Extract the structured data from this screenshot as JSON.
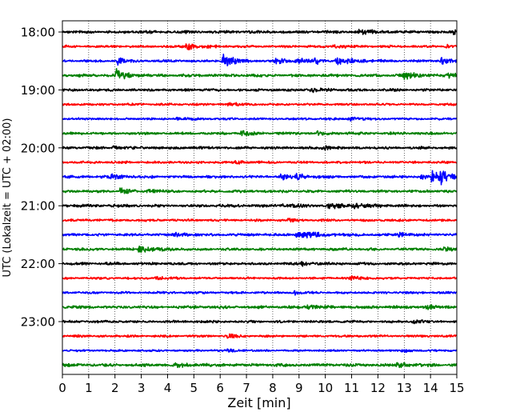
{
  "chart_data": {
    "type": "line",
    "subtype": "helicorder",
    "xlabel": "Zeit  [min]",
    "ylabel": "UTC (Lokalzeit = UTC + 02:00)",
    "xlim": [
      0,
      15
    ],
    "x_ticks": [
      0,
      1,
      2,
      3,
      4,
      5,
      6,
      7,
      8,
      9,
      10,
      11,
      12,
      13,
      14,
      15
    ],
    "y_tick_labels": [
      "18:00",
      "19:00",
      "20:00",
      "21:00",
      "22:00",
      "23:00"
    ],
    "y_tick_rows": [
      0,
      4,
      8,
      12,
      16,
      20
    ],
    "row_interval_minutes": 15,
    "vertical_grid": true,
    "grid_style": "dotted",
    "colors": [
      "#000000",
      "#ff0000",
      "#0000ff",
      "#008000"
    ],
    "rows": [
      {
        "start": "18:00",
        "color": "#000000",
        "noise": 0.22,
        "events": [
          {
            "t": 11.3,
            "amp": 0.45,
            "dur": 0.5
          },
          {
            "t": 14.9,
            "amp": 0.5,
            "dur": 0.3
          }
        ]
      },
      {
        "start": "18:15",
        "color": "#ff0000",
        "noise": 0.18,
        "events": [
          {
            "t": 4.7,
            "amp": 0.65,
            "dur": 0.4
          },
          {
            "t": 10.3,
            "amp": 0.3,
            "dur": 0.4
          },
          {
            "t": 14.6,
            "amp": 0.35,
            "dur": 0.3
          }
        ]
      },
      {
        "start": "18:30",
        "color": "#0000ff",
        "noise": 0.18,
        "events": [
          {
            "t": 2.1,
            "amp": 0.7,
            "dur": 0.3
          },
          {
            "t": 6.1,
            "amp": 1.3,
            "dur": 0.4
          },
          {
            "t": 8.1,
            "amp": 0.55,
            "dur": 0.4
          },
          {
            "t": 8.9,
            "amp": 0.5,
            "dur": 0.4
          },
          {
            "t": 9.6,
            "amp": 0.7,
            "dur": 0.2
          },
          {
            "t": 10.4,
            "amp": 0.75,
            "dur": 0.6
          },
          {
            "t": 14.4,
            "amp": 0.5,
            "dur": 0.3
          }
        ]
      },
      {
        "start": "18:45",
        "color": "#008000",
        "noise": 0.22,
        "events": [
          {
            "t": 2.05,
            "amp": 1.2,
            "dur": 0.3
          },
          {
            "t": 13.0,
            "amp": 0.6,
            "dur": 0.4
          },
          {
            "t": 14.7,
            "amp": 0.4,
            "dur": 0.3
          }
        ]
      },
      {
        "start": "19:00",
        "color": "#000000",
        "noise": 0.2,
        "events": [
          {
            "t": 9.4,
            "amp": 0.3,
            "dur": 0.4
          }
        ]
      },
      {
        "start": "19:15",
        "color": "#ff0000",
        "noise": 0.17,
        "events": [
          {
            "t": 6.3,
            "amp": 0.25,
            "dur": 0.4
          }
        ]
      },
      {
        "start": "19:30",
        "color": "#0000ff",
        "noise": 0.17,
        "events": [
          {
            "t": 4.3,
            "amp": 0.25,
            "dur": 0.4
          },
          {
            "t": 10.9,
            "amp": 0.35,
            "dur": 0.4
          }
        ]
      },
      {
        "start": "19:45",
        "color": "#008000",
        "noise": 0.2,
        "events": [
          {
            "t": 6.8,
            "amp": 0.55,
            "dur": 0.3
          },
          {
            "t": 9.7,
            "amp": 0.3,
            "dur": 0.3
          }
        ]
      },
      {
        "start": "20:00",
        "color": "#000000",
        "noise": 0.2,
        "events": [
          {
            "t": 1.9,
            "amp": 0.3,
            "dur": 0.3
          },
          {
            "t": 9.9,
            "amp": 0.35,
            "dur": 0.3
          }
        ]
      },
      {
        "start": "20:15",
        "color": "#ff0000",
        "noise": 0.18,
        "events": [
          {
            "t": 6.6,
            "amp": 0.4,
            "dur": 0.3
          }
        ]
      },
      {
        "start": "20:30",
        "color": "#0000ff",
        "noise": 0.2,
        "events": [
          {
            "t": 1.8,
            "amp": 0.45,
            "dur": 0.4
          },
          {
            "t": 8.3,
            "amp": 0.6,
            "dur": 0.3
          },
          {
            "t": 8.9,
            "amp": 0.5,
            "dur": 0.3
          },
          {
            "t": 13.6,
            "amp": 0.4,
            "dur": 0.4
          },
          {
            "t": 14.05,
            "amp": 0.95,
            "dur": 0.3
          },
          {
            "t": 14.4,
            "amp": 1.0,
            "dur": 0.2
          },
          {
            "t": 14.8,
            "amp": 0.55,
            "dur": 0.2
          }
        ]
      },
      {
        "start": "20:45",
        "color": "#008000",
        "noise": 0.2,
        "events": [
          {
            "t": 2.2,
            "amp": 0.55,
            "dur": 0.2
          },
          {
            "t": 3.2,
            "amp": 0.35,
            "dur": 0.4
          }
        ]
      },
      {
        "start": "21:00",
        "color": "#000000",
        "noise": 0.22,
        "events": [
          {
            "t": 8.3,
            "amp": 0.35,
            "dur": 0.3
          },
          {
            "t": 10.1,
            "amp": 0.6,
            "dur": 0.4
          },
          {
            "t": 11.0,
            "amp": 0.45,
            "dur": 0.4
          }
        ]
      },
      {
        "start": "21:15",
        "color": "#ff0000",
        "noise": 0.18,
        "events": [
          {
            "t": 8.6,
            "amp": 0.3,
            "dur": 0.3
          }
        ]
      },
      {
        "start": "21:30",
        "color": "#0000ff",
        "noise": 0.2,
        "events": [
          {
            "t": 8.9,
            "amp": 0.6,
            "dur": 0.8
          },
          {
            "t": 4.3,
            "amp": 0.3,
            "dur": 0.4
          },
          {
            "t": 12.8,
            "amp": 0.35,
            "dur": 0.3
          }
        ]
      },
      {
        "start": "21:45",
        "color": "#008000",
        "noise": 0.2,
        "events": [
          {
            "t": 2.9,
            "amp": 0.55,
            "dur": 0.6
          },
          {
            "t": 14.5,
            "amp": 0.3,
            "dur": 0.3
          }
        ]
      },
      {
        "start": "22:00",
        "color": "#000000",
        "noise": 0.2,
        "events": [
          {
            "t": 9.1,
            "amp": 0.3,
            "dur": 0.4
          }
        ]
      },
      {
        "start": "22:15",
        "color": "#ff0000",
        "noise": 0.17,
        "events": [
          {
            "t": 3.5,
            "amp": 0.3,
            "dur": 0.3
          },
          {
            "t": 10.9,
            "amp": 0.4,
            "dur": 0.4
          }
        ]
      },
      {
        "start": "22:30",
        "color": "#0000ff",
        "noise": 0.17,
        "events": [
          {
            "t": 8.8,
            "amp": 0.35,
            "dur": 0.3
          }
        ]
      },
      {
        "start": "22:45",
        "color": "#008000",
        "noise": 0.22,
        "events": [
          {
            "t": 9.3,
            "amp": 0.35,
            "dur": 0.4
          },
          {
            "t": 13.8,
            "amp": 0.3,
            "dur": 0.4
          }
        ]
      },
      {
        "start": "23:00",
        "color": "#000000",
        "noise": 0.18,
        "events": [
          {
            "t": 13.3,
            "amp": 0.25,
            "dur": 0.3
          }
        ]
      },
      {
        "start": "23:15",
        "color": "#ff0000",
        "noise": 0.17,
        "events": [
          {
            "t": 0.4,
            "amp": 0.45,
            "dur": 0.15
          },
          {
            "t": 6.3,
            "amp": 0.35,
            "dur": 0.3
          }
        ]
      },
      {
        "start": "23:30",
        "color": "#0000ff",
        "noise": 0.15,
        "events": [
          {
            "t": 6.3,
            "amp": 0.3,
            "dur": 0.3
          },
          {
            "t": 12.9,
            "amp": 0.25,
            "dur": 0.3
          }
        ]
      },
      {
        "start": "23:45",
        "color": "#008000",
        "noise": 0.22,
        "events": [
          {
            "t": 4.3,
            "amp": 0.45,
            "dur": 0.4
          },
          {
            "t": 12.7,
            "amp": 0.45,
            "dur": 0.4
          }
        ]
      }
    ]
  }
}
